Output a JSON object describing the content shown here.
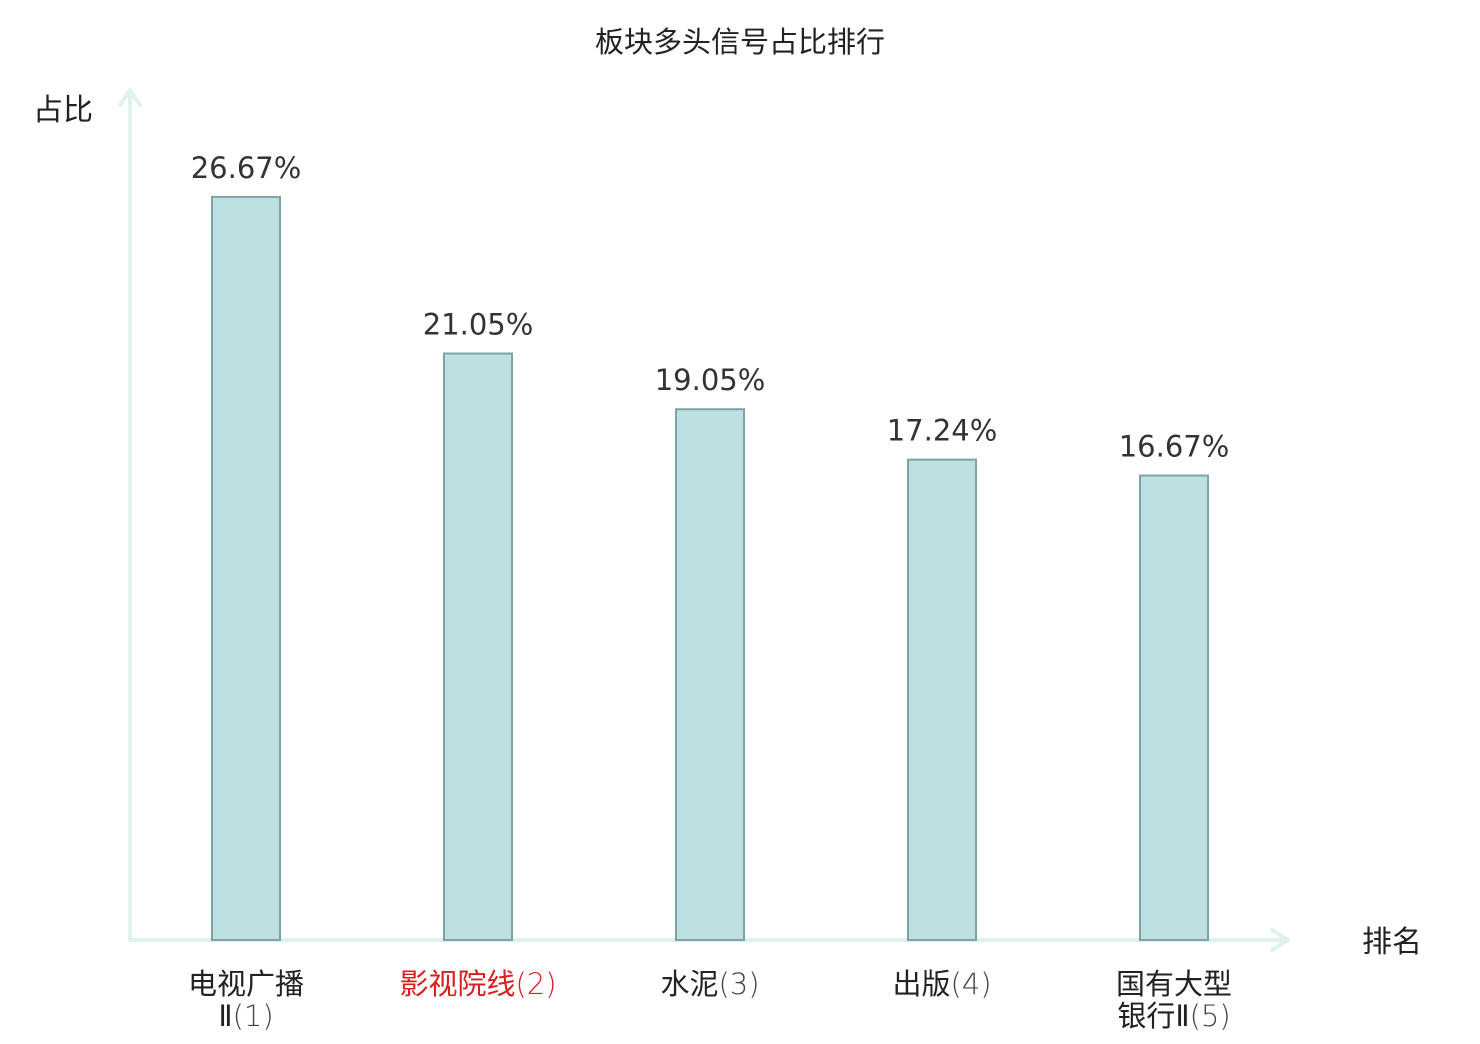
{
  "chart_data": {
    "type": "bar",
    "title": "板块多头信号占比排行",
    "ylabel": "占比",
    "xlabel": "排名",
    "categories": [
      {
        "name_lines": [
          "电视广播",
          "Ⅱ"
        ],
        "rank": "(1)",
        "highlight": false
      },
      {
        "name_lines": [
          "影视院线"
        ],
        "rank": "(2)",
        "highlight": true
      },
      {
        "name_lines": [
          "水泥"
        ],
        "rank": "(3)",
        "highlight": false
      },
      {
        "name_lines": [
          "出版"
        ],
        "rank": "(4)",
        "highlight": false
      },
      {
        "name_lines": [
          "国有大型",
          "银行Ⅱ"
        ],
        "rank": "(5)",
        "highlight": false
      }
    ],
    "values": [
      26.67,
      21.05,
      19.05,
      17.24,
      16.67
    ],
    "value_labels": [
      "26.67%",
      "21.05%",
      "19.05%",
      "17.24%",
      "16.67%"
    ],
    "ylim": [
      0,
      29
    ],
    "grid": false,
    "colors": {
      "bar_fill": "#bde0e2",
      "bar_stroke": "#7fa3a5",
      "axis": "#dff2ef",
      "text": "#222222",
      "value_text": "#333333",
      "highlight": "#d92020"
    }
  }
}
